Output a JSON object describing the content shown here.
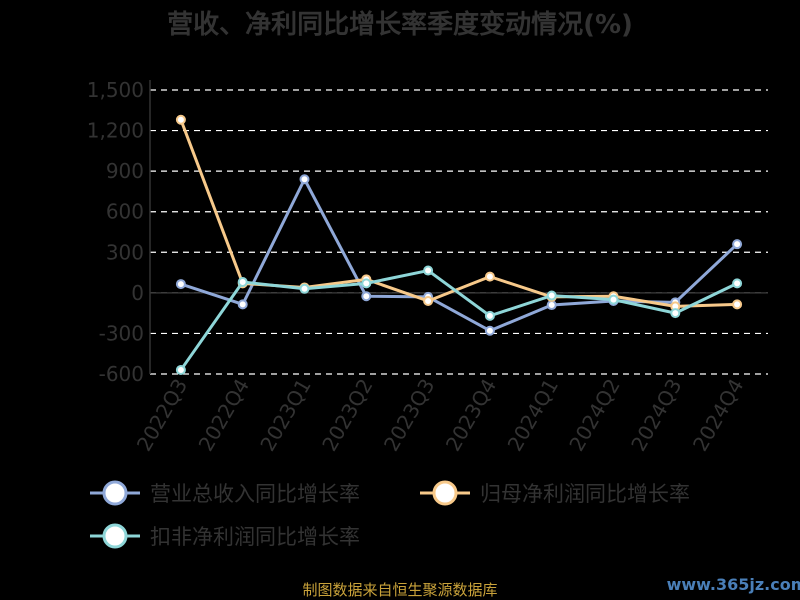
{
  "chart_data": {
    "type": "line",
    "title": "营收、净利同比增长率季度变动情况(%)",
    "categories": [
      "2022Q3",
      "2022Q4",
      "2023Q1",
      "2023Q2",
      "2023Q3",
      "2023Q4",
      "2024Q1",
      "2024Q2",
      "2024Q3",
      "2024Q4"
    ],
    "ylim": [
      -600,
      1500
    ],
    "yticks": [
      "1,500",
      "1,200",
      "900",
      "600",
      "300",
      "0",
      "-300",
      "-600"
    ],
    "grid": true,
    "legend_position": "bottom-left",
    "series": [
      {
        "name": "营业总收入同比增长率",
        "color": "#8fa8d8",
        "values": [
          65,
          -85,
          840,
          -25,
          -30,
          -280,
          -90,
          -60,
          -70,
          360
        ]
      },
      {
        "name": "归母净利润同比增长率",
        "color": "#f7c98a",
        "values": [
          1280,
          70,
          40,
          100,
          -60,
          120,
          -30,
          -25,
          -100,
          -85
        ]
      },
      {
        "name": "扣非净利润同比增长率",
        "color": "#8ed6d8",
        "values": [
          -570,
          80,
          30,
          70,
          165,
          -170,
          -20,
          -50,
          -150,
          70
        ]
      }
    ]
  },
  "footer": "制图数据来自恒生聚源数据库",
  "watermark": "www.365jz.com"
}
